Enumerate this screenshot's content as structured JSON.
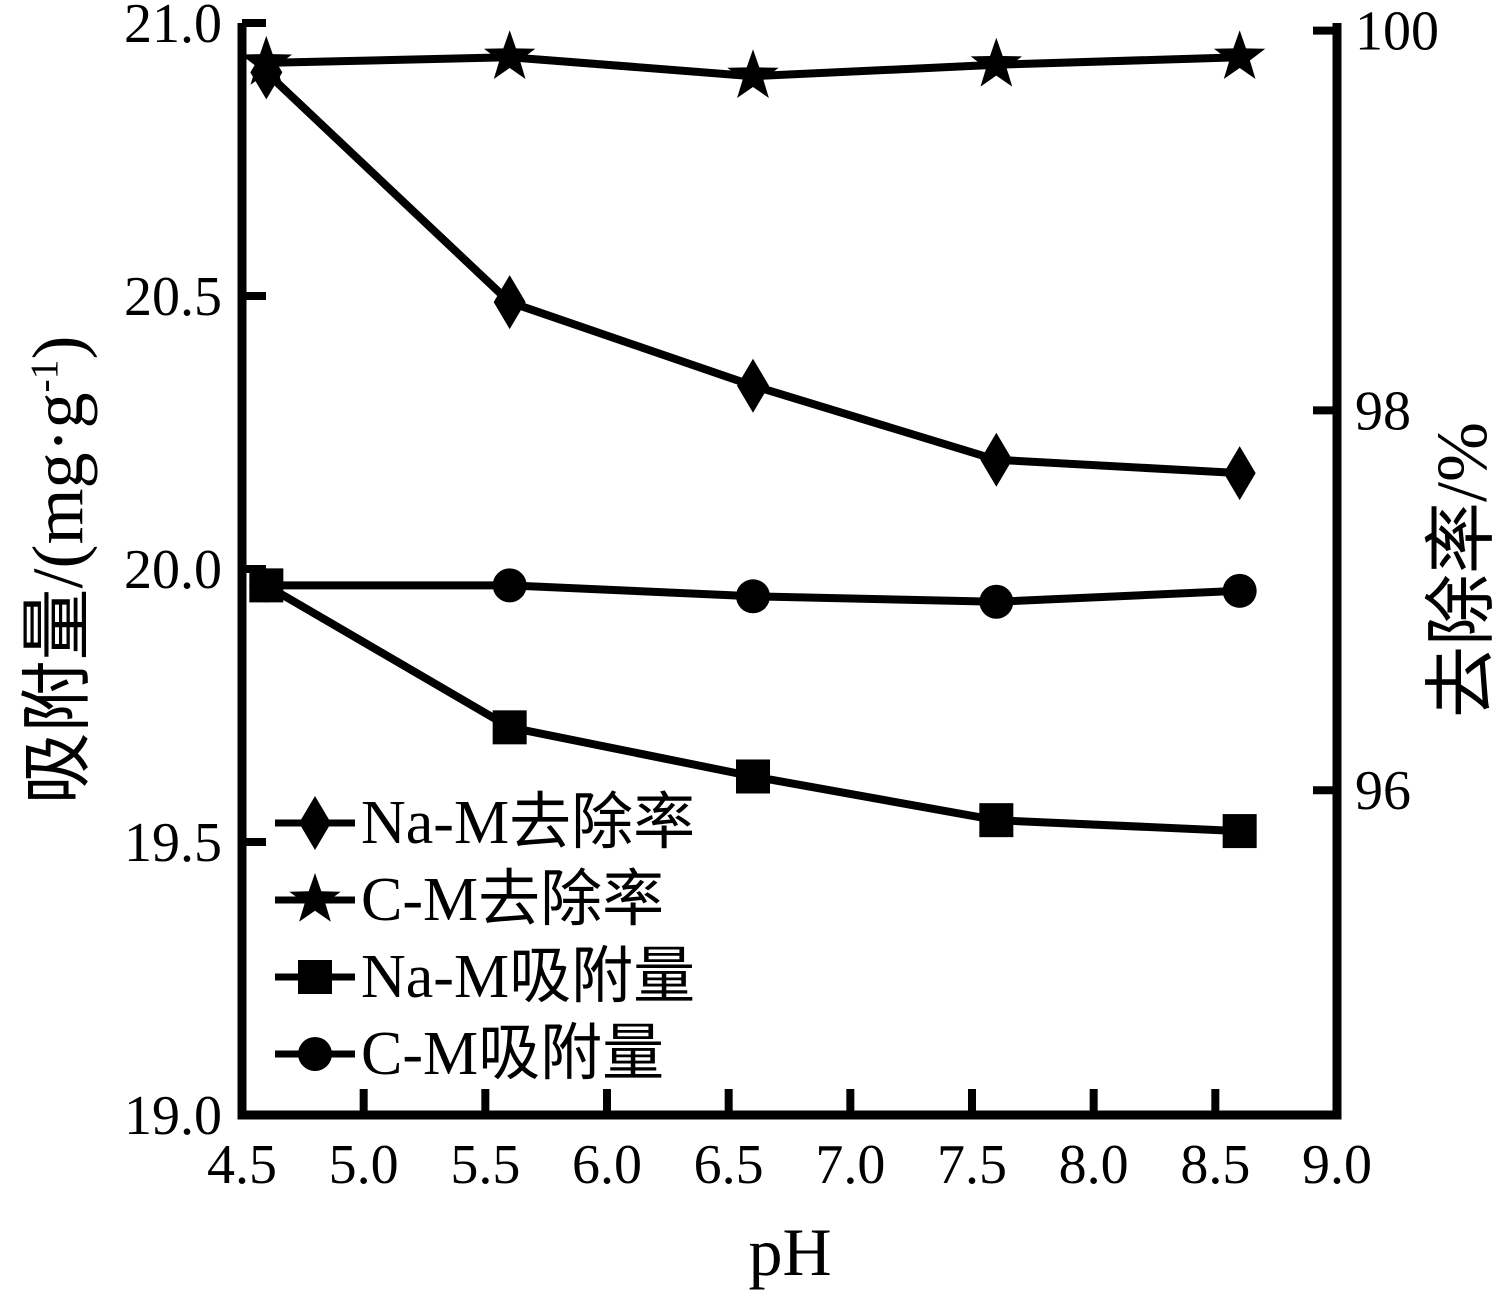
{
  "page": {
    "background": "#ffffff",
    "foreground": "#000000"
  },
  "chart_data": {
    "type": "line",
    "title": "",
    "xlabel": "pH",
    "x": [
      4.6,
      5.6,
      6.6,
      7.6,
      8.6
    ],
    "xlim": [
      4.5,
      9.0
    ],
    "xticks": [
      "4.5",
      "5.0",
      "5.5",
      "6.0",
      "6.5",
      "7.0",
      "7.5",
      "8.0",
      "8.5",
      "9.0"
    ],
    "left_axis": {
      "label_main": "吸附量/(mg·g",
      "label_sup": "-1",
      "label_close": ")",
      "ylim": [
        19.0,
        21.0
      ],
      "ticks": [
        "19.0",
        "19.5",
        "20.0",
        "20.5",
        "21.0"
      ]
    },
    "right_axis": {
      "label": "去除率/%",
      "ylim": [
        94.29,
        100.04
      ],
      "ticks": [
        "96",
        "98",
        "100"
      ]
    },
    "series": [
      {
        "name": "Na-M去除率",
        "marker": "diamond",
        "axis": "right",
        "values": [
          99.78,
          98.57,
          98.13,
          97.74,
          97.67
        ]
      },
      {
        "name": "C-M去除率",
        "marker": "star",
        "axis": "right",
        "values": [
          99.83,
          99.86,
          99.76,
          99.82,
          99.86
        ]
      },
      {
        "name": "Na-M吸附量",
        "marker": "square",
        "axis": "left",
        "values": [
          19.97,
          19.71,
          19.62,
          19.54,
          19.52
        ]
      },
      {
        "name": "C-M吸附量",
        "marker": "circle",
        "axis": "left",
        "values": [
          19.97,
          19.97,
          19.95,
          19.94,
          19.96
        ]
      }
    ],
    "legend_position": "lower-left-inside",
    "grid": false,
    "line_color": "#000000",
    "marker_color": "#000000"
  }
}
